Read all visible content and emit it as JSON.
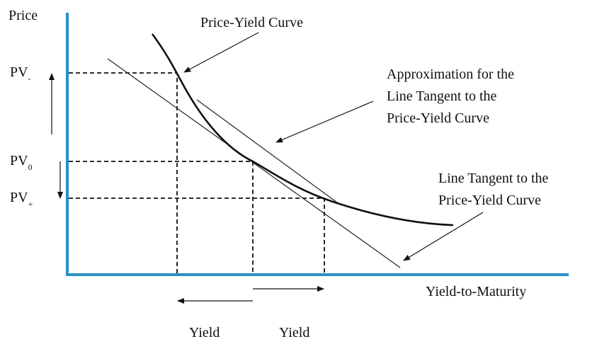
{
  "axes": {
    "y_label": "Price",
    "x_label": "Yield-to-Maturity"
  },
  "levels": [
    {
      "label": "PV",
      "subscript": "-"
    },
    {
      "label": "PV",
      "subscript": "0"
    },
    {
      "label": "PV",
      "subscript": "+"
    }
  ],
  "annotations": {
    "curve": "Price-Yield Curve",
    "approximation": [
      "Approximation for the",
      "Line Tangent to the",
      "Price-Yield Curve"
    ],
    "tangent": [
      "Line Tangent to the",
      "Price-Yield Curve"
    ]
  },
  "yield_labels": [
    "Yield",
    "Yield"
  ]
}
